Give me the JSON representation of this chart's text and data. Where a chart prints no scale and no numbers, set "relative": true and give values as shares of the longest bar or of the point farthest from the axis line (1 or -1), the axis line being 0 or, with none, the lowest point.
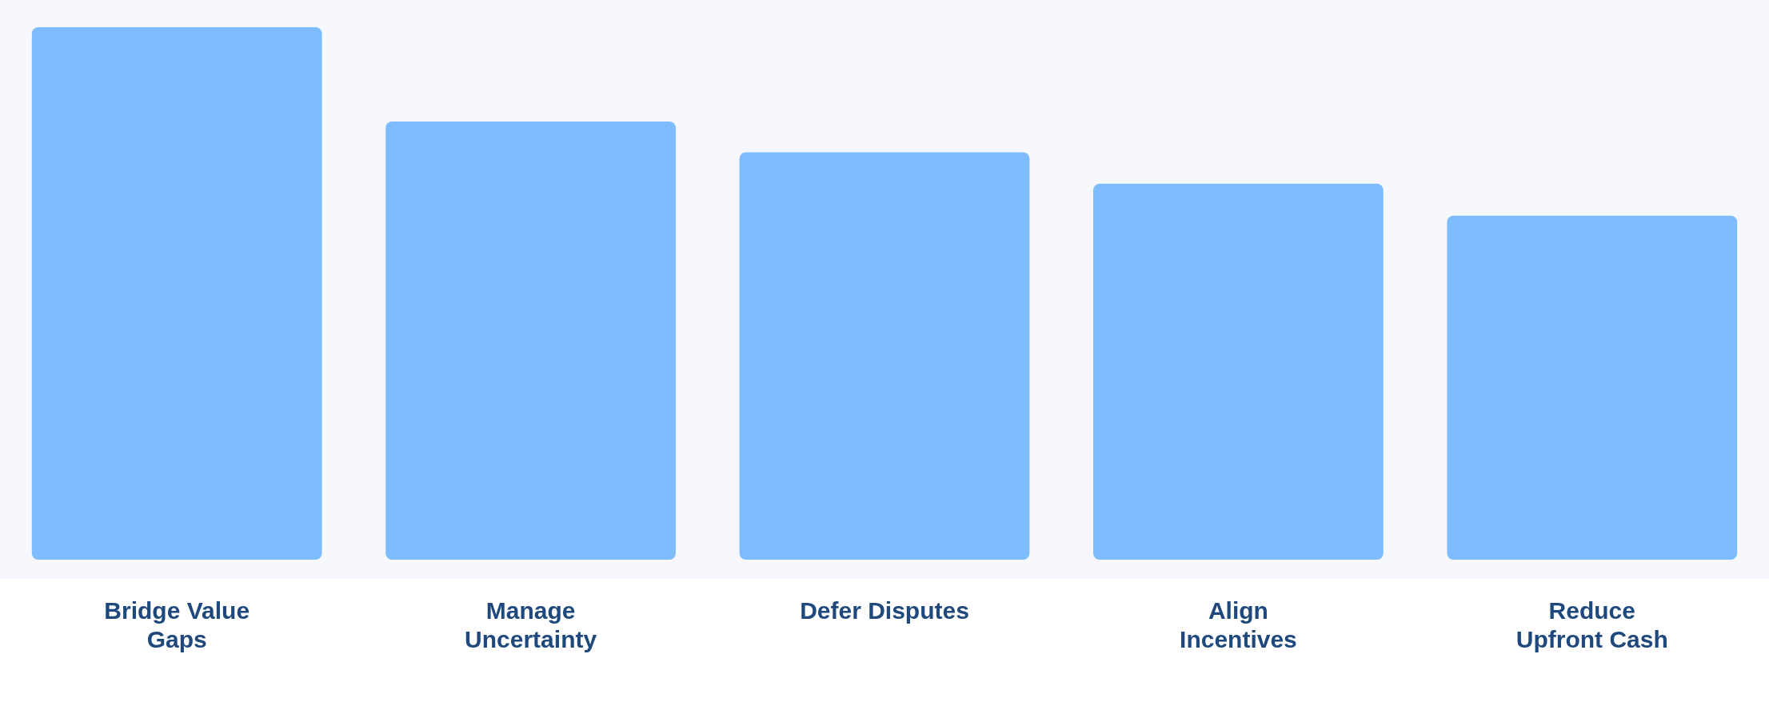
{
  "chart_data": {
    "type": "bar",
    "relative": true,
    "categories": [
      "Bridge Value Gaps",
      "Manage Uncertainty",
      "Defer Disputes",
      "Align Incentives",
      "Reduce Upfront Cash"
    ],
    "values": [
      1,
      0.823,
      0.765,
      0.706,
      0.646
    ],
    "color": "#7dbdff",
    "grid": false,
    "legend": false
  }
}
